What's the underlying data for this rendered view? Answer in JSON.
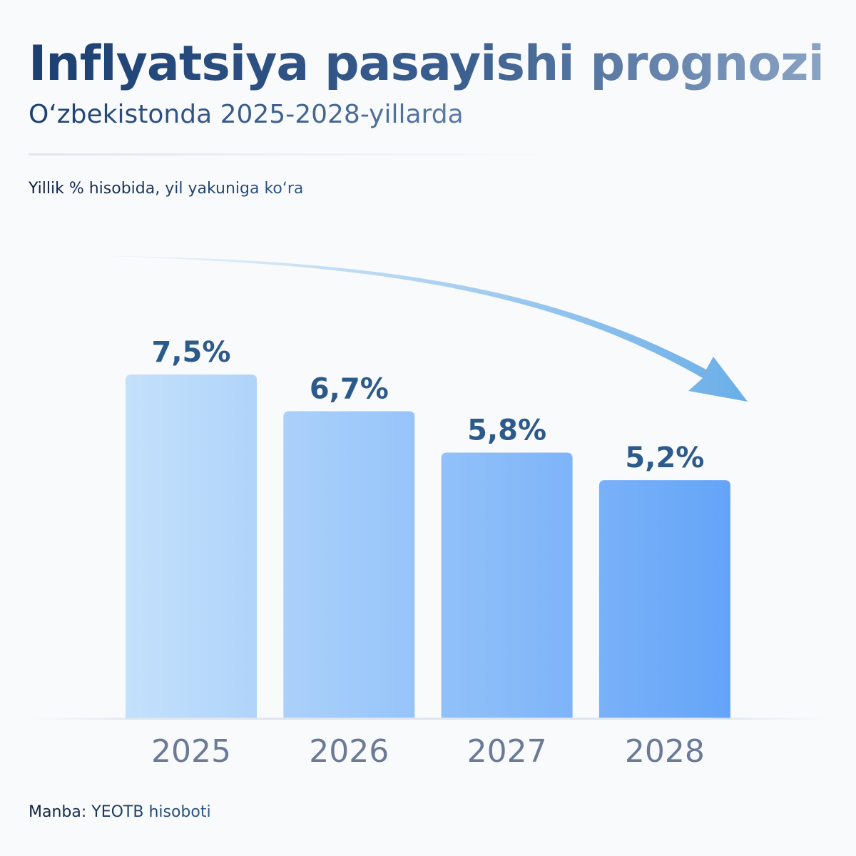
{
  "header": {
    "title": "Inflyatsiya pasayishi prognozi",
    "subtitle": "O‘zbekistonda 2025-2028-yillarda",
    "unit_note": "Yillik % hisobida, yil yakuniga ko‘ra"
  },
  "footer": {
    "source": "Manba: YEOTB hisoboti"
  },
  "colors": {
    "bar_light": "#c4e1fb",
    "bar_dark": "#64a4f8",
    "value_label": "#2c5a8a",
    "year_label": "#6b7a96",
    "arrow": "#6aaee8"
  },
  "chart_data": {
    "type": "bar",
    "categories": [
      "2025",
      "2026",
      "2027",
      "2028"
    ],
    "values": [
      7.5,
      6.7,
      5.8,
      5.2
    ],
    "data_labels": [
      "7,5%",
      "6,7%",
      "5,8%",
      "5,2%"
    ],
    "title": "Inflyatsiya pasayishi prognozi",
    "subtitle": "O‘zbekistonda 2025-2028-yillarda",
    "ylabel": "Yillik % hisobida, yil yakuniga ko‘ra",
    "ylim": [
      0,
      7.5
    ],
    "grid": false,
    "trend_arrow": "downward"
  }
}
